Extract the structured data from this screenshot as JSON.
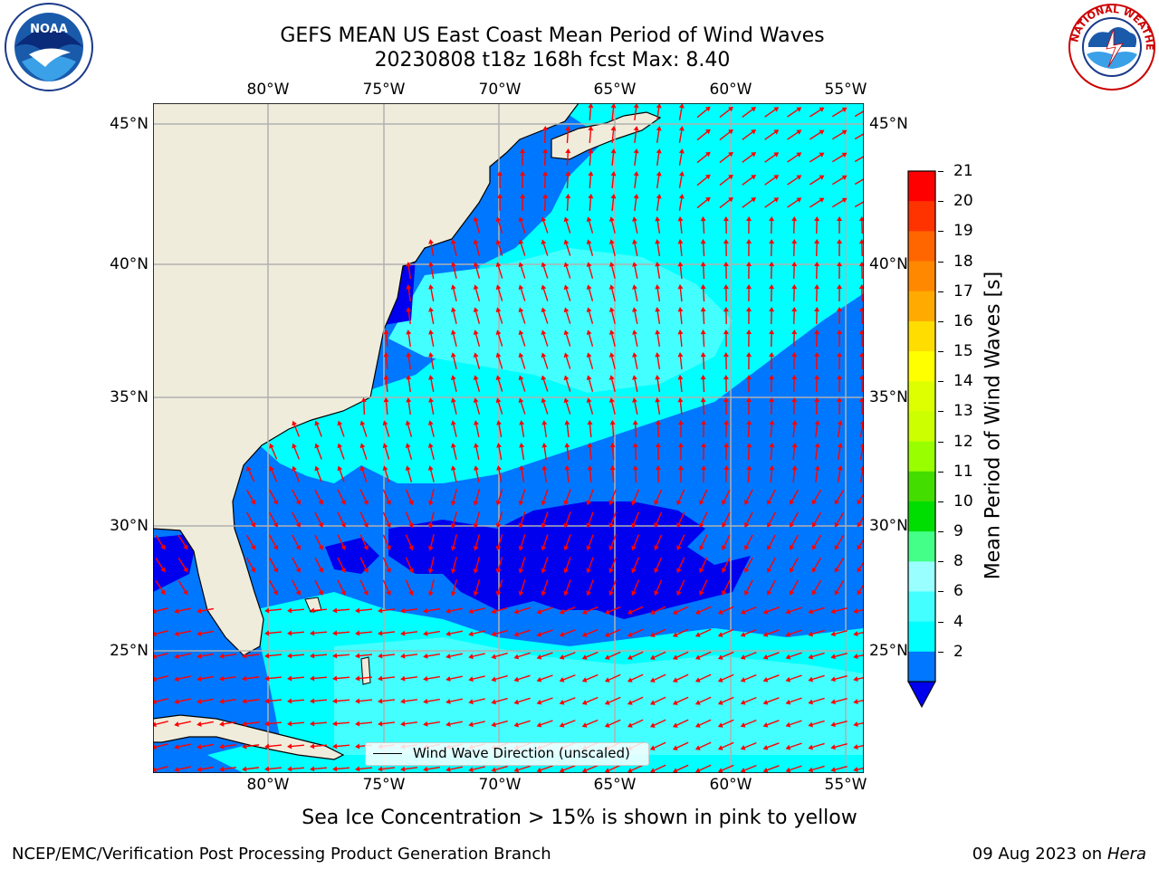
{
  "title_line1": "GEFS MEAN US East Coast Mean Period of Wind Waves",
  "title_line2": "20230808 t18z 168h fcst   Max: 8.40",
  "lon_labels": [
    "80°W",
    "75°W",
    "70°W",
    "65°W",
    "60°W",
    "55°W"
  ],
  "lat_labels": [
    "45°N",
    "40°N",
    "35°N",
    "30°N",
    "25°N"
  ],
  "colorbar": {
    "label": "Mean Period of Wind Waves [s]",
    "ticks": [
      "21",
      "20",
      "19",
      "18",
      "17",
      "16",
      "15",
      "14",
      "13",
      "12",
      "11",
      "10",
      "9",
      "8",
      "6",
      "4",
      "2"
    ],
    "colors": [
      "#ff0000",
      "#ff3300",
      "#ff6600",
      "#ff8800",
      "#ffaa00",
      "#ffdd00",
      "#ffff00",
      "#ddff00",
      "#ccff00",
      "#99ff00",
      "#44dd00",
      "#00dd00",
      "#44ff88",
      "#99ffff",
      "#44ffff",
      "#00ffff",
      "#0077ff"
    ],
    "underflow_color": "#0000ee"
  },
  "legend_label": "Wind Wave Direction (unscaled)",
  "sea_ice_note": "Sea Ice Concentration > 15% is shown in pink to yellow",
  "footer_left": "NCEP/EMC/Verification Post Processing Product Generation Branch",
  "footer_date": "09 Aug 2023 on",
  "footer_host": "Hera",
  "logos": {
    "left": "NOAA",
    "right": "NATIONAL WEATHER SERVICE"
  },
  "colors": {
    "land": "#efecdc",
    "grid": "#b0b0b0",
    "arrow": "#ff0000",
    "coast": "#000000"
  }
}
